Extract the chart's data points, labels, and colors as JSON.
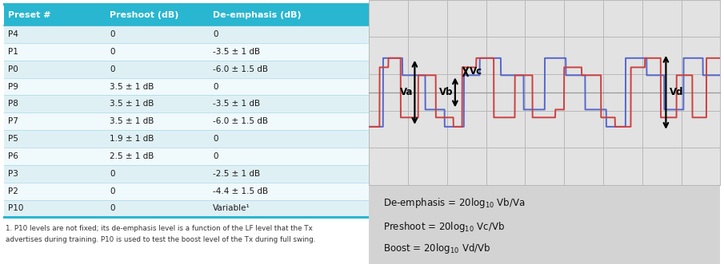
{
  "table_header": [
    "Preset #",
    "Preshoot (dB)",
    "De-emphasis (dB)"
  ],
  "table_rows": [
    [
      "P4",
      "0",
      "0"
    ],
    [
      "P1",
      "0",
      "-3.5 ± 1 dB"
    ],
    [
      "P0",
      "0",
      "-6.0 ± 1.5 dB"
    ],
    [
      "P9",
      "3.5 ± 1 dB",
      "0"
    ],
    [
      "P8",
      "3.5 ± 1 dB",
      "-3.5 ± 1 dB"
    ],
    [
      "P7",
      "3.5 ± 1 dB",
      "-6.0 ± 1.5 dB"
    ],
    [
      "P5",
      "1.9 ± 1 dB",
      "0"
    ],
    [
      "P6",
      "2.5 ± 1 dB",
      "0"
    ],
    [
      "P3",
      "0",
      "-2.5 ± 1 dB"
    ],
    [
      "P2",
      "0",
      "-4.4 ± 1.5 dB"
    ],
    [
      "P10",
      "0",
      "Variable¹"
    ]
  ],
  "footnote": "1. P10 levels are not fixed; its de-emphasis level is a function of the LF level that the Tx\nadvertises during training. P10 is used to test the boost level of the Tx during full swing.",
  "header_bg": "#29b6d0",
  "header_fg": "#ffffff",
  "row_bg_even": "#dff0f5",
  "row_bg_odd": "#f0f9fb",
  "border_color": "#29b6d0",
  "formula_bg": "#d3d3d3",
  "waveform_bg": "#e2e2e2",
  "waveform_grid_color": "#b8b8b8",
  "blue_color": "#5567cc",
  "red_color": "#cc4040",
  "center_line_color": "#999999"
}
